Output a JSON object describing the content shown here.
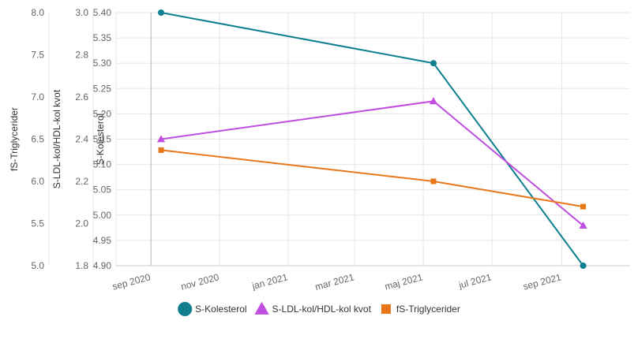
{
  "chart_data": {
    "type": "line",
    "title": "",
    "x_axis": {
      "type": "date",
      "range": [
        "2020-08-01",
        "2021-10-31"
      ],
      "ticks": [
        "2020-09-01",
        "2020-11-01",
        "2021-01-01",
        "2021-03-01",
        "2021-05-01",
        "2021-07-01",
        "2021-09-01"
      ],
      "tick_labels": [
        "sep 2020",
        "nov 2020",
        "jan 2021",
        "mar 2021",
        "maj 2021",
        "jul 2021",
        "sep 2021"
      ]
    },
    "y_axes": [
      {
        "id": "trig",
        "label": "fS-Triglycerider",
        "ylim": [
          5.0,
          8.0
        ],
        "ticks": [
          "5.0",
          "5.5",
          "6.0",
          "6.5",
          "7.0",
          "7.5",
          "8.0"
        ]
      },
      {
        "id": "ratio",
        "label": "S-LDL-kol/HDL-kol kvot",
        "ylim": [
          1.8,
          3.0
        ],
        "ticks": [
          "1.8",
          "2.0",
          "2.2",
          "2.4",
          "2.6",
          "2.8",
          "3.0"
        ]
      },
      {
        "id": "chol",
        "label": "S-Kolesterol",
        "ylim": [
          4.9,
          5.4
        ],
        "ticks": [
          "4.90",
          "4.95",
          "5.00",
          "5.05",
          "5.10",
          "5.15",
          "5.20",
          "5.25",
          "5.30",
          "5.35",
          "5.40"
        ]
      }
    ],
    "series": [
      {
        "name": "S-Kolesterol",
        "axis": "chol",
        "color": "#0f7f8f",
        "marker": "circle",
        "points": [
          {
            "x": "2020-09-10",
            "y": 5.4
          },
          {
            "x": "2021-05-10",
            "y": 5.3
          },
          {
            "x": "2021-09-20",
            "y": 4.9
          }
        ]
      },
      {
        "name": "S-LDL-kol/HDL-kol kvot",
        "axis": "ratio",
        "color": "#c04ee0",
        "marker": "triangle",
        "points": [
          {
            "x": "2020-09-10",
            "y": 2.4
          },
          {
            "x": "2021-05-10",
            "y": 2.58
          },
          {
            "x": "2021-09-20",
            "y": 1.99
          }
        ]
      },
      {
        "name": "fS-Triglycerider",
        "axis": "trig",
        "color": "#e8771a",
        "marker": "square",
        "points": [
          {
            "x": "2020-09-10",
            "y": 6.37
          },
          {
            "x": "2021-05-10",
            "y": 6.0
          },
          {
            "x": "2021-09-20",
            "y": 5.7
          }
        ]
      }
    ],
    "grid": true,
    "legend": "bottom-center"
  }
}
